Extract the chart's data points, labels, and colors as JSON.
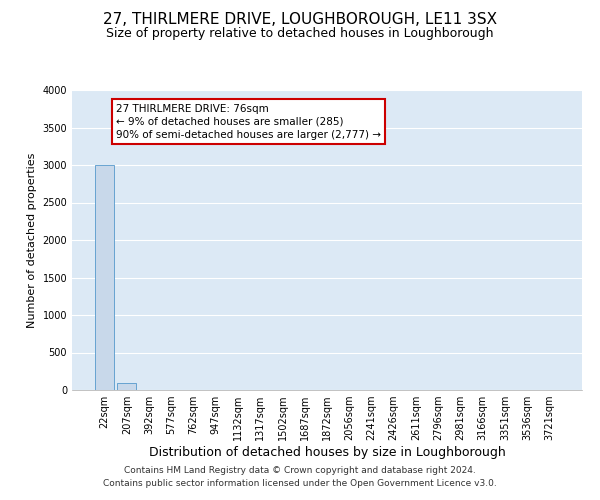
{
  "title": "27, THIRLMERE DRIVE, LOUGHBOROUGH, LE11 3SX",
  "subtitle": "Size of property relative to detached houses in Loughborough",
  "xlabel": "Distribution of detached houses by size in Loughborough",
  "ylabel": "Number of detached properties",
  "footnote1": "Contains HM Land Registry data © Crown copyright and database right 2024.",
  "footnote2": "Contains public sector information licensed under the Open Government Licence v3.0.",
  "bar_labels": [
    "22sqm",
    "207sqm",
    "392sqm",
    "577sqm",
    "762sqm",
    "947sqm",
    "1132sqm",
    "1317sqm",
    "1502sqm",
    "1687sqm",
    "1872sqm",
    "2056sqm",
    "2241sqm",
    "2426sqm",
    "2611sqm",
    "2796sqm",
    "2981sqm",
    "3166sqm",
    "3351sqm",
    "3536sqm",
    "3721sqm"
  ],
  "bar_values": [
    3000,
    100,
    5,
    2,
    1,
    1,
    1,
    1,
    1,
    0,
    0,
    0,
    0,
    0,
    0,
    0,
    0,
    0,
    0,
    0,
    0
  ],
  "bar_color": "#c8d8ea",
  "bar_edge_color": "#5599cc",
  "background_color": "#dce9f5",
  "grid_color": "#ffffff",
  "annotation_line1": "27 THIRLMERE DRIVE: 76sqm",
  "annotation_line2": "← 9% of detached houses are smaller (285)",
  "annotation_line3": "90% of semi-detached houses are larger (2,777) →",
  "annotation_box_color": "#ffffff",
  "annotation_box_edge_color": "#cc0000",
  "ylim": [
    0,
    4000
  ],
  "yticks": [
    0,
    500,
    1000,
    1500,
    2000,
    2500,
    3000,
    3500,
    4000
  ],
  "title_fontsize": 11,
  "subtitle_fontsize": 9,
  "xlabel_fontsize": 9,
  "ylabel_fontsize": 8,
  "tick_fontsize": 7,
  "annotation_fontsize": 7.5,
  "footnote_fontsize": 6.5
}
